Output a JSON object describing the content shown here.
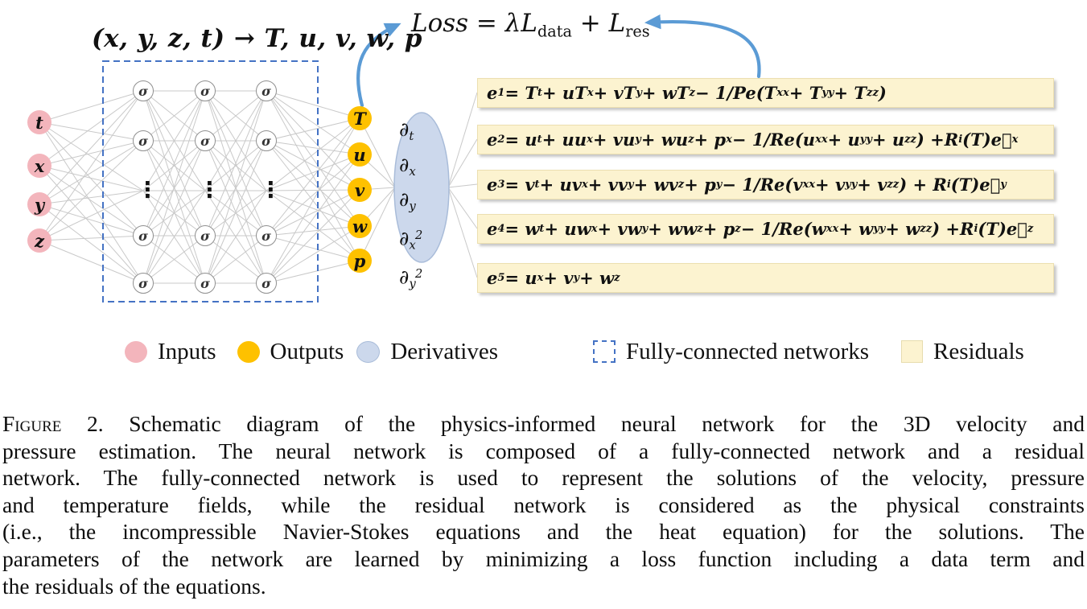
{
  "figure": {
    "mapping_title": "(x, y, z, t) → T, u, v, w, p",
    "loss_formula": "Loss = λL_{data} + L_{res}",
    "network": {
      "inputs": [
        "t",
        "x",
        "y",
        "z"
      ],
      "sigma_label": "σ",
      "dots_label": "⋮",
      "outputs": [
        "T",
        "u",
        "v",
        "w",
        "p"
      ],
      "derivatives": [
        "∂_{t}",
        "∂_{x}",
        "∂_{y}",
        "∂_{x}^{2}",
        "∂_{y}^{2}"
      ]
    },
    "equations": [
      "e_{1} = T_{t} + uT_{x} + vT_{y} + wT_{z} − 1/Pe(T_{xx} + T_{yy} + T_{zz})",
      "e_{2} = u_{t} + uu_{x} + vu_{y} + wu_{z} + p_{x} − 1/Re(u_{xx} + u_{yy} + u_{zz}) +R_{i}(T)e⃗_{x}",
      "e_{3} = v_{t} + uv_{x} + vv_{y} + wv_{z} + p_{y} − 1/Re(v_{xx} + v_{yy} + v_{zz}) + R_{i}(T)e⃗_{y}",
      "e_{4} = w_{t} + uw_{x} + vw_{y} + ww_{z} + p_{z} − 1/Re(w_{xx} + w_{yy} + w_{zz}) +R_{i}(T)e⃗_{z}",
      "e_{5} = u_{x} + v_{y} + w_{z}"
    ],
    "legend": [
      {
        "label": "Inputs"
      },
      {
        "label": "Outputs"
      },
      {
        "label": "Derivatives"
      },
      {
        "label": "Fully-connected networks"
      },
      {
        "label": "Residuals"
      }
    ],
    "caption": {
      "label": "Figure 2.",
      "lines": [
        "Schematic diagram of the physics-informed neural network for the 3D velocity and",
        "pressure estimation. The neural network is composed of a fully-connected network and a residual",
        "network. The fully-connected network is used to represent the solutions of the velocity, pressure",
        "and temperature fields, while the residual network is considered as the physical constraints",
        "(i.e., the incompressible Navier-Stokes equations and the heat equation) for the solutions. The",
        "parameters of the network are learned by minimizing a loss function including a data term and",
        "the residuals of the equations."
      ]
    },
    "colors": {
      "input_fill": "#f3b5bc",
      "output_fill": "#fec100",
      "derivative_fill": "#ccd8ec",
      "derivative_border": "#a9bcd9",
      "residual_fill": "#fcf3d0",
      "fcn_border": "#4472c4",
      "arrow_blue": "#5b9bd5",
      "connection_gray": "#c9c9c9"
    }
  }
}
